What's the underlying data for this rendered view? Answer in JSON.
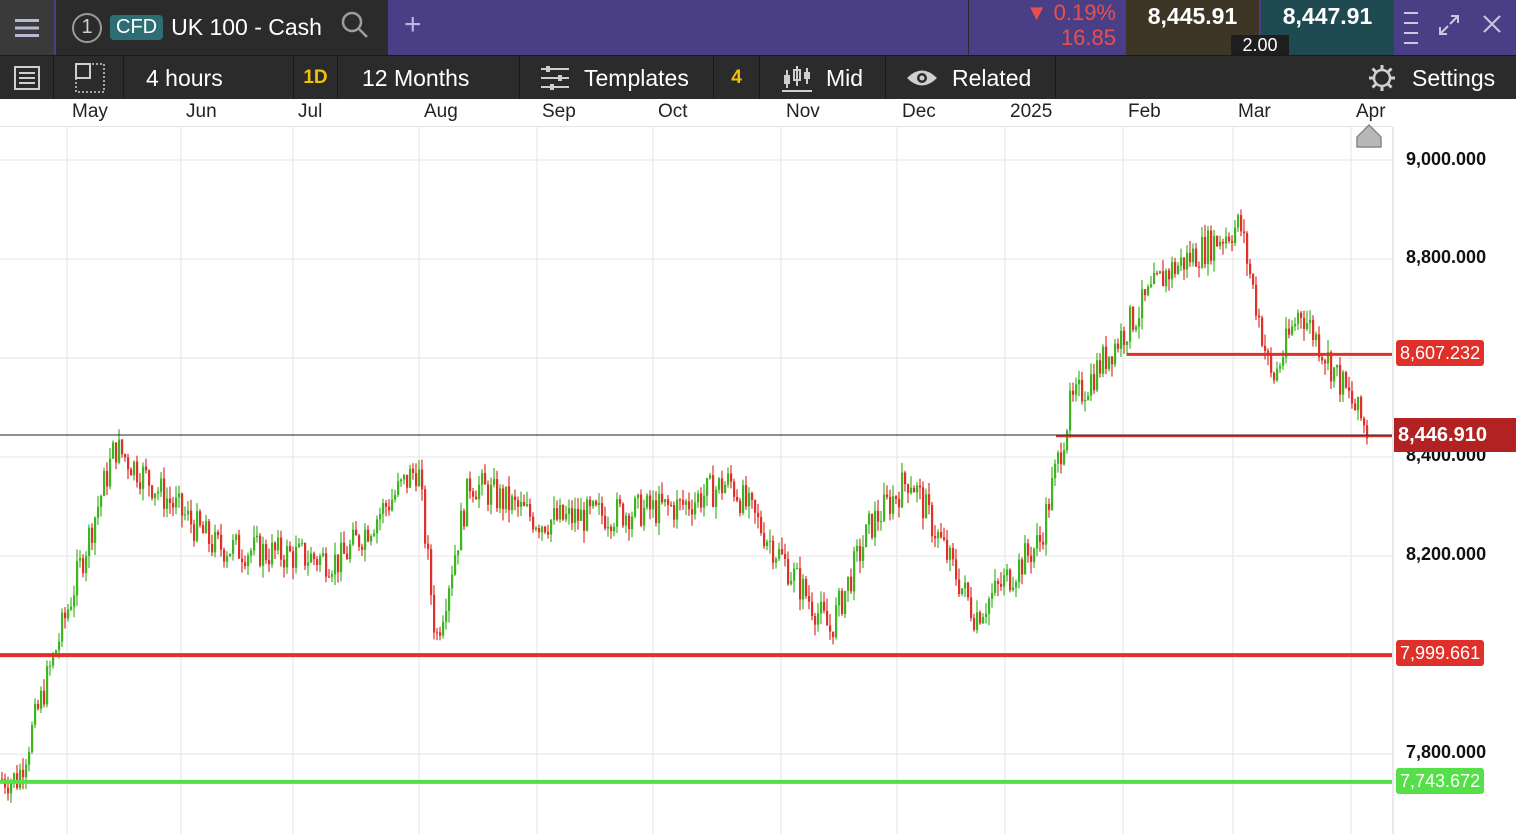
{
  "header": {
    "tab_number": "1",
    "instrument_type": "CFD",
    "instrument_name": "UK 100 - Cash",
    "change_pct": "▼ 0.19%",
    "change_abs": "16.85",
    "sell_price": "8,445.91",
    "buy_price": "8,447.91",
    "spread": "2.00",
    "add_tab_label": "+"
  },
  "toolbar": {
    "interval": "4 hours",
    "period_badge": "1D",
    "range": "12 Months",
    "templates": "Templates",
    "templates_count": "4",
    "price_mode": "Mid",
    "related": "Related",
    "settings": "Settings"
  },
  "colors": {
    "topbar": "#4a3f86",
    "up_candle": "#3cb520",
    "down_candle": "#e0302a",
    "support_line": "#e0302a",
    "low_line": "#55e04a",
    "current_price_tag": "#b22222"
  },
  "chart_data": {
    "type": "candlestick",
    "x_tick_labels": [
      "May",
      "Jun",
      "Jul",
      "Aug",
      "Sep",
      "Oct",
      "Nov",
      "Dec",
      "2025",
      "Feb",
      "Mar",
      "Apr"
    ],
    "y_tick_labels": [
      "9,000.000",
      "8,800.000",
      "8,400.000",
      "8,200.000",
      "7,800.000"
    ],
    "ylim": [
      7650,
      9060
    ],
    "grid": true,
    "current_price": "8,446.910",
    "horizontal_lines": [
      {
        "value": 8607.232,
        "label": "8,607.232",
        "color": "red"
      },
      {
        "value": 7999.661,
        "label": "7,999.661",
        "color": "red"
      },
      {
        "value": 7743.672,
        "label": "7,743.672",
        "color": "green"
      }
    ],
    "approx_close_path": [
      [
        "Apr 2024",
        7750
      ],
      [
        "May 2024",
        8420
      ],
      [
        "Jun 2024",
        8220
      ],
      [
        "Jul 2024",
        8190
      ],
      [
        "Aug 2024",
        8380
      ],
      [
        "Aug 2024",
        8030
      ],
      [
        "Aug 2024",
        8350
      ],
      [
        "Sep 2024",
        8270
      ],
      [
        "Oct 2024",
        8300
      ],
      [
        "Oct 2024",
        8350
      ],
      [
        "Nov 2024",
        8050
      ],
      [
        "Nov 2024",
        8260
      ],
      [
        "Dec 2024",
        8360
      ],
      [
        "Dec 2024",
        8080
      ],
      [
        "2025",
        8230
      ],
      [
        "Jan 2025",
        8500
      ],
      [
        "Feb 2025",
        8770
      ],
      [
        "Mar 2025",
        8870
      ],
      [
        "Mar 2025",
        8550
      ],
      [
        "Mar 2025",
        8700
      ],
      [
        "Apr 2025",
        8450
      ]
    ]
  }
}
